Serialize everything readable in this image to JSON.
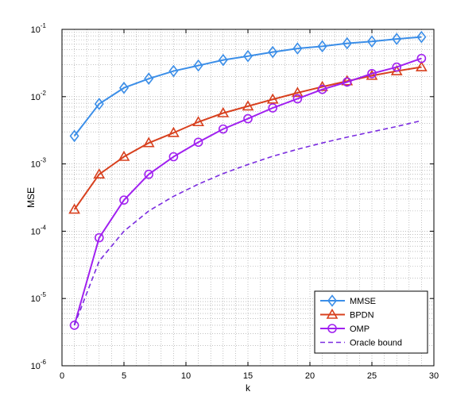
{
  "chart_data": {
    "type": "line",
    "xlabel": "k",
    "ylabel": "MSE",
    "xlim": [
      0,
      30
    ],
    "ylim": [
      1e-06,
      0.1
    ],
    "yscale": "log",
    "grid": true,
    "legend_position": "bottom-right",
    "xticks": [
      0,
      5,
      10,
      15,
      20,
      25,
      30
    ],
    "yticks": [
      {
        "exp": "-6",
        "value": 1e-06
      },
      {
        "exp": "-5",
        "value": 1e-05
      },
      {
        "exp": "-4",
        "value": 0.0001
      },
      {
        "exp": "-3",
        "value": 0.001
      },
      {
        "exp": "-2",
        "value": 0.01
      },
      {
        "exp": "-1",
        "value": 0.1
      }
    ],
    "x": [
      1,
      3,
      5,
      7,
      9,
      11,
      13,
      15,
      17,
      19,
      21,
      23,
      25,
      27,
      29
    ],
    "series": [
      {
        "name": "MMSE",
        "color": "#3b8ee8",
        "marker": "diamond",
        "dashed": false,
        "values": [
          0.0026,
          0.0078,
          0.0135,
          0.0185,
          0.024,
          0.029,
          0.035,
          0.04,
          0.046,
          0.052,
          0.056,
          0.062,
          0.066,
          0.072,
          0.077
        ]
      },
      {
        "name": "BPDN",
        "color": "#d8401e",
        "marker": "triangle",
        "dashed": false,
        "values": [
          0.00021,
          0.0007,
          0.00128,
          0.00205,
          0.0029,
          0.0042,
          0.0057,
          0.0072,
          0.0091,
          0.0114,
          0.014,
          0.017,
          0.0205,
          0.024,
          0.0275
        ]
      },
      {
        "name": "OMP",
        "color": "#a020f0",
        "marker": "circle",
        "dashed": false,
        "values": [
          4e-06,
          8e-05,
          0.00029,
          0.0007,
          0.00128,
          0.0021,
          0.0033,
          0.0047,
          0.0068,
          0.0093,
          0.0128,
          0.0165,
          0.022,
          0.0275,
          0.037
        ]
      },
      {
        "name": "Oracle bound",
        "color": "#7a2be0",
        "marker": "none",
        "dashed": true,
        "values": [
          4e-06,
          3.6e-05,
          0.0001,
          0.0002,
          0.00033,
          0.0005,
          0.00072,
          0.00098,
          0.0013,
          0.00165,
          0.00205,
          0.0025,
          0.003,
          0.0036,
          0.0044
        ]
      }
    ]
  }
}
